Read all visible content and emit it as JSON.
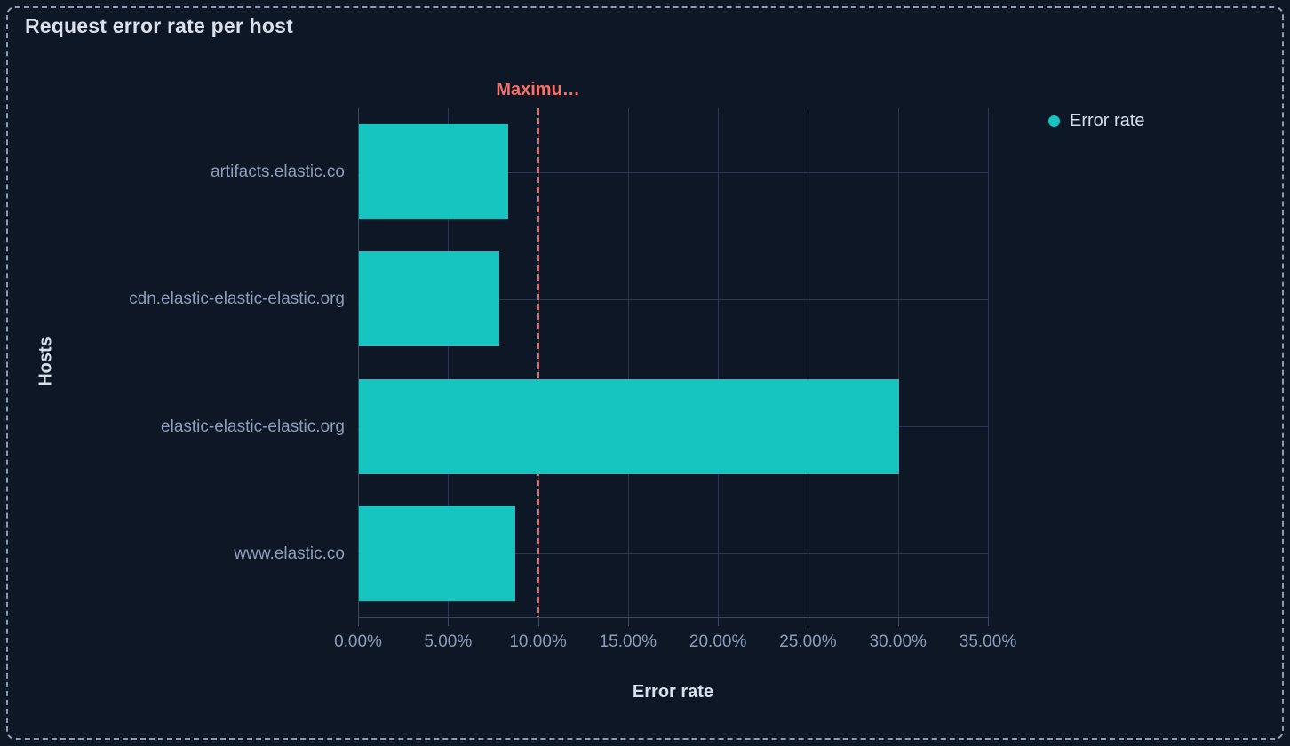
{
  "panel": {
    "title": "Request error rate per host"
  },
  "legend": {
    "position": "right",
    "items": [
      {
        "label": "Error rate",
        "color": "#16c5c0"
      }
    ]
  },
  "chart_data": {
    "type": "bar",
    "orientation": "horizontal",
    "title": "Request error rate per host",
    "xlabel": "Error rate",
    "ylabel": "Hosts",
    "categories": [
      "artifacts.elastic.co",
      "cdn.elastic-elastic-elastic.org",
      "elastic-elastic-elastic.org",
      "www.elastic.co"
    ],
    "series": [
      {
        "name": "Error rate",
        "color": "#16c5c0",
        "values": [
          8.3,
          7.8,
          30,
          8.7
        ]
      }
    ],
    "unit": "%",
    "xlim": [
      0,
      35
    ],
    "x_ticks": [
      0,
      5,
      10,
      15,
      20,
      25,
      30,
      35
    ],
    "x_tick_labels": [
      "0.00%",
      "5.00%",
      "10.00%",
      "15.00%",
      "20.00%",
      "25.00%",
      "30.00%",
      "35.00%"
    ],
    "grid": true,
    "legend_position": "right",
    "annotation": {
      "type": "vertical-line",
      "value": 10,
      "label": "Maximu…",
      "style": "dashed",
      "color": "#f6726a"
    }
  },
  "colors": {
    "background": "#0d1726",
    "bar": "#16c5c0",
    "annotation": "#f6726a",
    "gridline": "#2c3852",
    "axis": "#3c4963",
    "muted_text": "#8e9db9",
    "bright_text": "#d7dfeb",
    "selection_border": "#8c9bb5"
  }
}
